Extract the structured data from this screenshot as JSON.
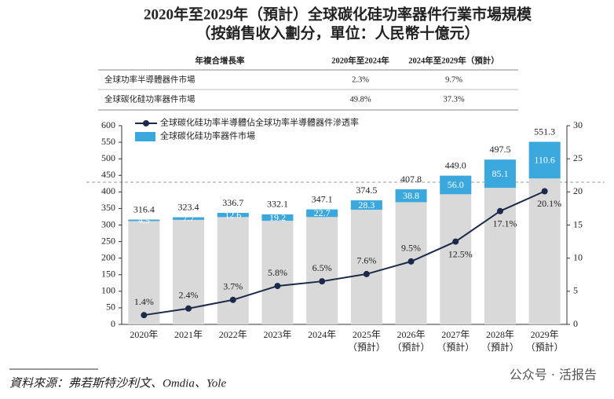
{
  "chart_data": {
    "type": "bar-line",
    "title": "2020年至2029年（預計）全球碳化硅功率器件行業市場規模",
    "subtitle": "（按銷售收入劃分，單位：人民幣十億元）",
    "table": {
      "header": [
        "年複合增長率",
        "2020年至2024年",
        "2024年至2029年（預計）"
      ],
      "rows": [
        [
          "全球功率半導體器件市場",
          "2.3%",
          "9.7%"
        ],
        [
          "全球碳化硅功率器件市場",
          "49.8%",
          "37.3%"
        ]
      ]
    },
    "categories": [
      "2020年",
      "2021年",
      "2022年",
      "2023年",
      "2024年",
      "2025年\n（預計）",
      "2026年\n（預計）",
      "2027年\n（預計）",
      "2028年\n（預計）",
      "2029年\n（預計）"
    ],
    "totals": {
      "color": "#d9d9d9",
      "values": [
        316.4,
        323.4,
        336.7,
        332.1,
        347.1,
        374.5,
        407.8,
        449.0,
        497.5,
        551.3
      ],
      "value_labels": [
        "316.4",
        "323.4",
        "336.7",
        "332.1",
        "347.1",
        "374.5",
        "407.8",
        "449.0",
        "497.5",
        "551.3"
      ]
    },
    "series": [
      {
        "name": "全球碳化硅功率器件市場",
        "type": "bar",
        "color": "#3aa8dc",
        "values": [
          4.5,
          7.7,
          12.6,
          19.2,
          22.7,
          28.3,
          38.8,
          56.0,
          85.1,
          110.6
        ],
        "value_labels": [
          "4.5",
          "7.7",
          "12.6",
          "19.2",
          "22.7",
          "28.3",
          "38.8",
          "56.0",
          "85.1",
          "110.6"
        ]
      },
      {
        "name": "全球碳化硅功率半導體佔全球功率半導體器件滲透率",
        "type": "line",
        "axis": "y2",
        "color": "#1b2a4a",
        "values": [
          1.4,
          2.4,
          3.7,
          5.8,
          6.5,
          7.6,
          9.5,
          12.5,
          17.1,
          20.1
        ],
        "value_labels": [
          "1.4%",
          "2.4%",
          "3.7%",
          "5.8%",
          "6.5%",
          "7.6%",
          "9.5%",
          "12.5%",
          "17.1%",
          "20.1%"
        ]
      }
    ],
    "ylim": [
      0,
      600
    ],
    "yticks": [
      0,
      50,
      100,
      150,
      200,
      250,
      300,
      350,
      400,
      450,
      500,
      550,
      600
    ],
    "y2lim": [
      0,
      30
    ],
    "y2ticks": [
      0,
      5,
      10,
      15,
      20,
      25,
      30
    ],
    "source": "資料來源：弗若斯特沙利文、Omdia、Yole",
    "watermark": "公众号 · 活报告"
  }
}
